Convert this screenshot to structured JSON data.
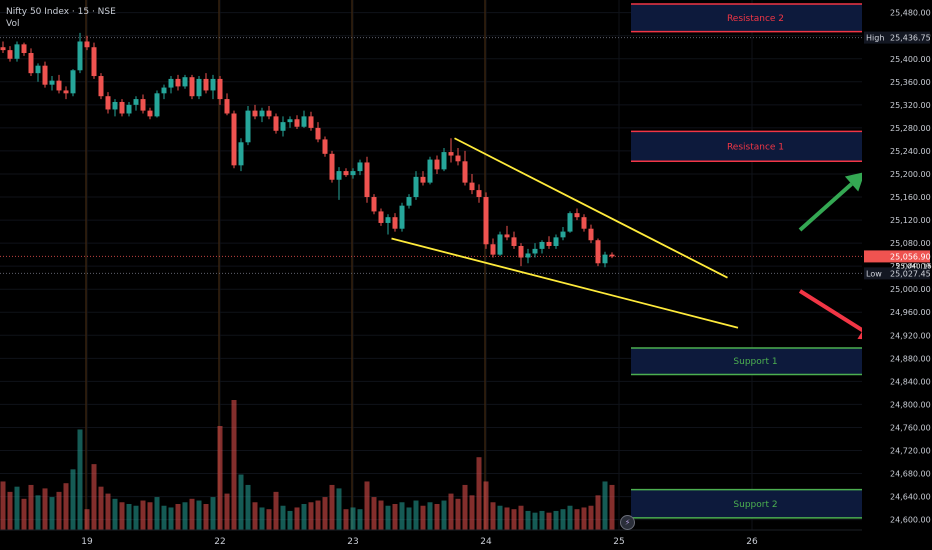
{
  "header": {
    "symbol_line": "Nifty 50 Index · 15 · NSE",
    "indicator": "Vol"
  },
  "colors": {
    "up": "#26a69a",
    "down": "#ef5350",
    "trend": "#ffeb3b",
    "res": "#f23645",
    "sup": "#4caf50",
    "zone": "#0d1a3c",
    "arrow_up": "#34a853",
    "arrow_down": "#f23645"
  },
  "chart_data": {
    "type": "candlestick",
    "y_range": [
      24582,
      25502
    ],
    "x_ticks": [
      {
        "i": 12,
        "label": "19"
      },
      {
        "i": 31,
        "label": "22"
      },
      {
        "i": 50,
        "label": "23"
      },
      {
        "i": 69,
        "label": "24"
      },
      {
        "i": 88,
        "label": "25"
      },
      {
        "i": 107,
        "label": "26"
      }
    ],
    "y_ticks": [
      25480,
      25440,
      25400,
      25360,
      25320,
      25280,
      25240,
      25200,
      25160,
      25120,
      25080,
      25040,
      25000,
      24960,
      24920,
      24880,
      24840,
      24800,
      24760,
      24720,
      24680,
      24640,
      24600
    ],
    "y_tick_labels": [
      "25,480.00",
      "25,440.00",
      "25,400.00",
      "25,360.00",
      "25,320.00",
      "25,280.00",
      "25,240.00",
      "25,200.00",
      "25,160.00",
      "25,120.00",
      "25,080.00",
      "25,040.00",
      "25,000.00",
      "24,960.00",
      "24,920.00",
      "24,880.00",
      "24,840.00",
      "24,800.00",
      "24,760.00",
      "24,720.00",
      "24,680.00",
      "24,640.00",
      "24,600.00"
    ],
    "high": {
      "label": "High",
      "value": 25436.75,
      "text": "25,436.75"
    },
    "low": {
      "label": "Low",
      "value": 25027.45,
      "text": "25,027.45"
    },
    "last": {
      "value": 25056.9,
      "text": "25,056.90",
      "sub": "25,040.16"
    },
    "zones": [
      {
        "name": "Resistance 2",
        "top": 25495,
        "bottom": 25447,
        "kind": "res"
      },
      {
        "name": "Resistance 1",
        "top": 25274,
        "bottom": 25222,
        "kind": "res"
      },
      {
        "name": "Support 1",
        "top": 24898,
        "bottom": 24852,
        "kind": "sup"
      },
      {
        "name": "Support 2",
        "top": 24652,
        "bottom": 24603,
        "kind": "sup"
      }
    ],
    "trendlines": [
      {
        "from": [
          64.5,
          25262
        ],
        "to": [
          103.5,
          25020
        ]
      },
      {
        "from": [
          55.5,
          25088
        ],
        "to": [
          105,
          24933
        ]
      }
    ],
    "candles": [
      [
        25420,
        25430,
        25410,
        25415,
        28
      ],
      [
        25415,
        25422,
        25395,
        25400,
        22
      ],
      [
        25400,
        25430,
        25395,
        25425,
        25
      ],
      [
        25425,
        25428,
        25405,
        25410,
        18
      ],
      [
        25410,
        25418,
        25370,
        25375,
        26
      ],
      [
        25375,
        25392,
        25360,
        25388,
        20
      ],
      [
        25388,
        25395,
        25350,
        25355,
        24
      ],
      [
        25355,
        25370,
        25345,
        25362,
        19
      ],
      [
        25362,
        25372,
        25340,
        25345,
        22
      ],
      [
        25345,
        25352,
        25330,
        25340,
        27
      ],
      [
        25340,
        25382,
        25335,
        25380,
        35
      ],
      [
        25380,
        25445,
        25375,
        25430,
        58
      ],
      [
        25430,
        25440,
        25415,
        25420,
        12
      ],
      [
        25420,
        25428,
        25365,
        25370,
        38
      ],
      [
        25370,
        25375,
        25330,
        25335,
        25
      ],
      [
        25335,
        25342,
        25305,
        25312,
        21
      ],
      [
        25312,
        25330,
        25300,
        25325,
        18
      ],
      [
        25325,
        25330,
        25300,
        25305,
        16
      ],
      [
        25305,
        25325,
        25300,
        25320,
        15
      ],
      [
        25320,
        25335,
        25310,
        25330,
        14
      ],
      [
        25330,
        25338,
        25305,
        25310,
        17
      ],
      [
        25310,
        25315,
        25295,
        25300,
        16
      ],
      [
        25300,
        25345,
        25298,
        25340,
        19
      ],
      [
        25340,
        25355,
        25330,
        25350,
        14
      ],
      [
        25350,
        25370,
        25340,
        25365,
        13
      ],
      [
        25365,
        25372,
        25345,
        25352,
        15
      ],
      [
        25352,
        25372,
        25348,
        25368,
        16
      ],
      [
        25368,
        25372,
        25330,
        25335,
        18
      ],
      [
        25335,
        25370,
        25330,
        25365,
        17
      ],
      [
        25365,
        25375,
        25340,
        25345,
        15
      ],
      [
        25345,
        25372,
        25330,
        25365,
        19
      ],
      [
        25365,
        25370,
        25320,
        25330,
        60
      ],
      [
        25330,
        25340,
        25302,
        25305,
        21
      ],
      [
        25305,
        25310,
        25210,
        25215,
        75
      ],
      [
        25215,
        25262,
        25205,
        25255,
        32
      ],
      [
        25255,
        25318,
        25250,
        25310,
        26
      ],
      [
        25310,
        25320,
        25295,
        25300,
        16
      ],
      [
        25300,
        25315,
        25290,
        25310,
        13
      ],
      [
        25310,
        25318,
        25295,
        25300,
        12
      ],
      [
        25300,
        25305,
        25270,
        25275,
        22
      ],
      [
        25275,
        25300,
        25265,
        25290,
        14
      ],
      [
        25290,
        25300,
        25280,
        25295,
        11
      ],
      [
        25295,
        25302,
        25278,
        25282,
        13
      ],
      [
        25282,
        25310,
        25280,
        25300,
        15
      ],
      [
        25300,
        25308,
        25275,
        25280,
        16
      ],
      [
        25280,
        25290,
        25255,
        25260,
        17
      ],
      [
        25260,
        25265,
        25230,
        25235,
        19
      ],
      [
        25235,
        25240,
        25185,
        25190,
        26
      ],
      [
        25190,
        25212,
        25155,
        25205,
        24
      ],
      [
        25205,
        25210,
        25195,
        25198,
        12
      ],
      [
        25198,
        25210,
        25192,
        25205,
        13
      ],
      [
        25205,
        25225,
        25198,
        25220,
        12
      ],
      [
        25220,
        25230,
        25150,
        25160,
        28
      ],
      [
        25160,
        25165,
        25130,
        25135,
        19
      ],
      [
        25135,
        25140,
        25110,
        25115,
        17
      ],
      [
        25115,
        25130,
        25095,
        25125,
        14
      ],
      [
        25125,
        25132,
        25100,
        25105,
        15
      ],
      [
        25105,
        25150,
        25100,
        25145,
        16
      ],
      [
        25145,
        25165,
        25140,
        25160,
        13
      ],
      [
        25160,
        25205,
        25155,
        25195,
        17
      ],
      [
        25195,
        25205,
        25180,
        25185,
        14
      ],
      [
        25185,
        25230,
        25182,
        25225,
        16
      ],
      [
        25225,
        25232,
        25200,
        25208,
        15
      ],
      [
        25208,
        25245,
        25205,
        25238,
        17
      ],
      [
        25238,
        25262,
        25220,
        25232,
        21
      ],
      [
        25232,
        25245,
        25215,
        25222,
        18
      ],
      [
        25222,
        25240,
        25180,
        25185,
        26
      ],
      [
        25185,
        25200,
        25165,
        25172,
        20
      ],
      [
        25172,
        25182,
        25150,
        25160,
        42
      ],
      [
        25160,
        25168,
        25070,
        25078,
        28
      ],
      [
        25078,
        25088,
        25055,
        25060,
        16
      ],
      [
        25060,
        25100,
        25058,
        25095,
        14
      ],
      [
        25095,
        25110,
        25085,
        25090,
        13
      ],
      [
        25090,
        25100,
        25070,
        25075,
        12
      ],
      [
        25075,
        25080,
        25040,
        25055,
        14
      ],
      [
        25055,
        25070,
        25045,
        25062,
        11
      ],
      [
        25062,
        25080,
        25055,
        25070,
        10
      ],
      [
        25070,
        25085,
        25062,
        25082,
        11
      ],
      [
        25082,
        25092,
        25070,
        25075,
        10
      ],
      [
        25075,
        25095,
        25070,
        25090,
        11
      ],
      [
        25090,
        25108,
        25085,
        25100,
        12
      ],
      [
        25100,
        25135,
        25098,
        25132,
        14
      ],
      [
        25132,
        25140,
        25120,
        25125,
        12
      ],
      [
        25125,
        25130,
        25100,
        25105,
        13
      ],
      [
        25105,
        25112,
        25080,
        25085,
        14
      ],
      [
        25085,
        25088,
        25040,
        25045,
        20
      ],
      [
        25045,
        25065,
        25038,
        25060,
        28
      ],
      [
        25060,
        25064,
        25054,
        25056.9,
        26
      ]
    ]
  }
}
